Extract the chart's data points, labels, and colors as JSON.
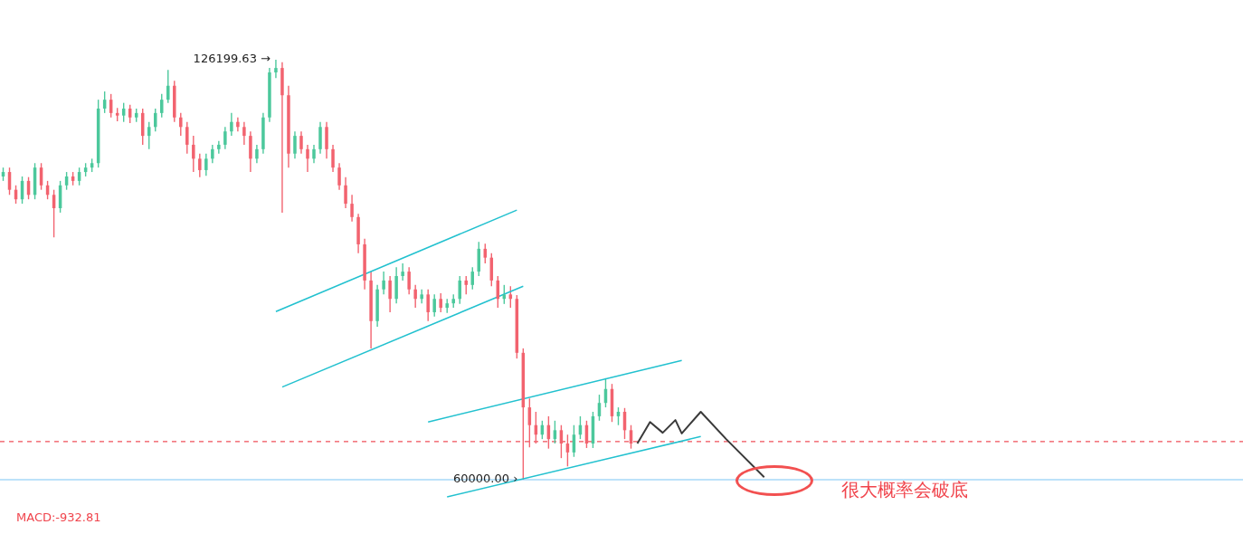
{
  "chart_data": {
    "type": "candlestick",
    "legend": false,
    "categories": [
      null,
      null,
      null,
      null,
      null,
      null,
      null,
      null,
      null,
      null,
      null,
      null,
      null,
      null,
      null,
      null,
      null,
      null,
      null,
      null,
      null,
      null,
      null,
      null,
      null,
      null,
      null,
      null,
      null,
      null,
      null,
      null,
      null,
      null,
      null,
      null,
      null,
      null,
      null,
      null,
      null,
      null,
      null,
      null,
      null,
      null,
      null,
      null,
      null,
      null,
      null,
      null,
      null,
      null,
      null,
      null,
      null,
      null,
      null,
      null,
      null,
      null,
      null,
      null,
      null,
      null,
      null,
      null,
      null,
      null,
      null,
      null,
      null,
      null,
      null,
      null,
      null,
      null,
      null,
      null,
      null,
      null,
      null,
      null,
      null,
      null,
      null,
      null,
      null,
      null,
      null,
      null,
      null,
      null,
      null,
      null,
      null,
      null,
      null,
      null,
      null,
      null,
      null,
      null,
      null,
      null,
      null,
      null,
      null,
      null,
      null,
      null,
      null,
      null,
      null,
      null,
      null,
      null,
      null,
      null,
      null,
      null,
      null,
      null,
      null,
      null,
      null,
      null,
      null,
      null,
      null,
      null,
      null,
      null,
      null,
      null,
      null,
      null,
      null,
      null,
      null,
      null,
      null,
      null,
      null,
      null,
      null,
      null,
      null,
      null,
      null,
      null,
      null,
      null,
      null,
      null,
      null,
      null,
      null,
      null,
      null,
      null,
      null,
      null,
      null,
      null,
      null,
      null,
      null,
      null,
      null,
      null,
      null,
      null,
      null,
      null,
      null,
      null,
      null,
      null,
      null,
      null,
      null,
      null,
      null,
      null,
      null,
      null,
      null,
      null,
      null,
      null,
      null,
      null,
      null,
      null
    ],
    "ohlc": [
      [
        107800,
        109200,
        107100,
        108500
      ],
      [
        108500,
        109200,
        104900,
        105700
      ],
      [
        105700,
        106400,
        103500,
        104200
      ],
      [
        104200,
        107800,
        103500,
        107100
      ],
      [
        107100,
        107700,
        104200,
        104900
      ],
      [
        104900,
        109900,
        104200,
        109200
      ],
      [
        109200,
        109900,
        105700,
        106400
      ],
      [
        106400,
        107100,
        104200,
        104900
      ],
      [
        104900,
        105700,
        98200,
        102800
      ],
      [
        102800,
        107100,
        102100,
        106400
      ],
      [
        106400,
        108500,
        105700,
        107800
      ],
      [
        107800,
        108500,
        106400,
        107100
      ],
      [
        107100,
        109200,
        106400,
        108500
      ],
      [
        108500,
        109900,
        107800,
        109200
      ],
      [
        109200,
        110600,
        108500,
        109900
      ],
      [
        109900,
        119900,
        109200,
        118500
      ],
      [
        118500,
        121200,
        117800,
        119900
      ],
      [
        119900,
        120800,
        117100,
        117800
      ],
      [
        117800,
        118600,
        116500,
        117400
      ],
      [
        117400,
        119400,
        116400,
        118500
      ],
      [
        118500,
        119100,
        116200,
        117100
      ],
      [
        117100,
        118500,
        116400,
        117800
      ],
      [
        117800,
        118500,
        112800,
        114200
      ],
      [
        114200,
        116400,
        112100,
        115600
      ],
      [
        115600,
        118500,
        114900,
        117800
      ],
      [
        117800,
        120800,
        117100,
        119900
      ],
      [
        119900,
        124600,
        119400,
        122100
      ],
      [
        122100,
        122900,
        116400,
        117100
      ],
      [
        117100,
        117800,
        114200,
        115600
      ],
      [
        115600,
        116400,
        111400,
        112800
      ],
      [
        112800,
        114200,
        108500,
        110600
      ],
      [
        110600,
        111400,
        107700,
        108800
      ],
      [
        108800,
        111400,
        107900,
        110600
      ],
      [
        110600,
        112800,
        109900,
        112100
      ],
      [
        112100,
        113400,
        111400,
        112800
      ],
      [
        112800,
        115600,
        112100,
        114900
      ],
      [
        114900,
        117800,
        114200,
        116400
      ],
      [
        116400,
        117100,
        114900,
        115600
      ],
      [
        115600,
        116400,
        112800,
        114200
      ],
      [
        114200,
        114900,
        108500,
        110600
      ],
      [
        110600,
        112800,
        109900,
        112100
      ],
      [
        112100,
        117800,
        111400,
        117100
      ],
      [
        117100,
        124900,
        116400,
        124200
      ],
      [
        124200,
        126199.63,
        123300,
        124900
      ],
      [
        124900,
        125800,
        102100,
        120600
      ],
      [
        120600,
        122100,
        109200,
        111400
      ],
      [
        111400,
        114900,
        110600,
        114200
      ],
      [
        114200,
        114900,
        111400,
        112100
      ],
      [
        112100,
        112800,
        108500,
        110600
      ],
      [
        110600,
        112800,
        109900,
        112100
      ],
      [
        112100,
        116400,
        111400,
        115600
      ],
      [
        115600,
        116400,
        110600,
        112100
      ],
      [
        112100,
        112800,
        108500,
        109200
      ],
      [
        109200,
        109900,
        105700,
        106400
      ],
      [
        106400,
        107700,
        102800,
        103500
      ],
      [
        103500,
        104900,
        100700,
        101400
      ],
      [
        101400,
        101900,
        95700,
        97100
      ],
      [
        97100,
        98000,
        90000,
        91400
      ],
      [
        91400,
        92800,
        80700,
        85000
      ],
      [
        85000,
        90700,
        84100,
        90000
      ],
      [
        90000,
        92800,
        89200,
        91400
      ],
      [
        91400,
        92100,
        86400,
        88500
      ],
      [
        88500,
        93500,
        87800,
        92100
      ],
      [
        92100,
        94100,
        91400,
        92800
      ],
      [
        92800,
        93500,
        89200,
        90000
      ],
      [
        90000,
        90700,
        87100,
        88500
      ],
      [
        88500,
        90000,
        87800,
        89200
      ],
      [
        89200,
        90000,
        85000,
        86400
      ],
      [
        86400,
        89200,
        85700,
        88500
      ],
      [
        88500,
        89400,
        86400,
        87100
      ],
      [
        87100,
        88500,
        86300,
        87800
      ],
      [
        87800,
        89200,
        87100,
        88500
      ],
      [
        88500,
        92100,
        87700,
        91400
      ],
      [
        91400,
        92100,
        89200,
        90700
      ],
      [
        90700,
        93500,
        90000,
        92800
      ],
      [
        92800,
        97500,
        92100,
        96400
      ],
      [
        96400,
        97200,
        94100,
        95000
      ],
      [
        95000,
        95700,
        90500,
        91400
      ],
      [
        91400,
        92100,
        87100,
        88500
      ],
      [
        88500,
        90700,
        87700,
        89200
      ],
      [
        89200,
        90500,
        87100,
        88500
      ],
      [
        88500,
        89100,
        79100,
        80000
      ],
      [
        80000,
        80700,
        60000,
        71400
      ],
      [
        71400,
        72800,
        65100,
        68600
      ],
      [
        68600,
        70700,
        65700,
        67100
      ],
      [
        67100,
        69300,
        66400,
        68600
      ],
      [
        68600,
        70000,
        64900,
        66400
      ],
      [
        66400,
        69300,
        65700,
        67800
      ],
      [
        67800,
        68600,
        63400,
        65700
      ],
      [
        65700,
        67100,
        62100,
        64300
      ],
      [
        64300,
        68600,
        63600,
        67100
      ],
      [
        67100,
        70000,
        66400,
        68600
      ],
      [
        68600,
        69300,
        65000,
        65700
      ],
      [
        65700,
        70700,
        65000,
        70000
      ],
      [
        70000,
        73400,
        69300,
        72100
      ],
      [
        72100,
        76000,
        71400,
        74300
      ],
      [
        74300,
        75100,
        69100,
        70000
      ],
      [
        70000,
        71400,
        68600,
        70700
      ],
      [
        70700,
        71300,
        66400,
        67800
      ],
      [
        67800,
        68600,
        64900,
        65700
      ],
      null,
      null,
      null,
      null,
      null,
      null,
      null,
      null,
      null,
      null,
      null,
      null,
      null,
      null,
      null,
      null,
      null,
      null,
      null,
      null,
      null,
      null,
      null,
      null,
      null,
      null,
      null,
      null,
      null,
      null,
      null,
      null,
      null,
      null,
      null,
      null,
      null,
      null,
      null,
      null,
      null,
      null,
      null,
      null,
      null,
      null,
      null,
      null,
      null,
      null,
      null,
      null,
      null,
      null,
      null,
      null,
      null,
      null,
      null,
      null,
      null,
      null,
      null,
      null,
      null,
      null,
      null,
      null,
      null,
      null,
      null,
      null,
      null,
      null,
      null,
      null,
      null,
      null,
      null,
      null,
      null,
      null,
      null,
      null,
      null,
      null,
      null,
      null,
      null,
      null,
      null,
      null,
      null,
      null,
      null,
      null
    ],
    "colors": [
      "#4cc89c",
      "#f2636f",
      "#f2636f",
      "#4cc89c",
      "#f2636f",
      "#4cc89c",
      "#f2636f",
      "#f2636f",
      "#f2636f",
      "#4cc89c",
      "#4cc89c",
      "#f2636f",
      "#4cc89c",
      "#4cc89c",
      "#4cc89c",
      "#4cc89c",
      "#4cc89c",
      "#f2636f",
      "#f2636f",
      "#4cc89c",
      "#f2636f",
      "#4cc89c",
      "#f2636f",
      "#4cc89c",
      "#4cc89c",
      "#4cc89c",
      "#4cc89c",
      "#f2636f",
      "#f2636f",
      "#f2636f",
      "#f2636f",
      "#f2636f",
      "#4cc89c",
      "#4cc89c",
      "#4cc89c",
      "#4cc89c",
      "#4cc89c",
      "#f2636f",
      "#f2636f",
      "#f2636f",
      "#4cc89c",
      "#4cc89c",
      "#4cc89c",
      "#4cc89c",
      "#f2636f",
      "#f2636f",
      "#4cc89c",
      "#f2636f",
      "#f2636f",
      "#4cc89c",
      "#4cc89c",
      "#f2636f",
      "#f2636f",
      "#f2636f",
      "#f2636f",
      "#f2636f",
      "#f2636f",
      "#f2636f",
      "#f2636f",
      "#4cc89c",
      "#4cc89c",
      "#f2636f",
      "#4cc89c",
      "#4cc89c",
      "#f2636f",
      "#f2636f",
      "#4cc89c",
      "#f2636f",
      "#4cc89c",
      "#f2636f",
      "#4cc89c",
      "#4cc89c",
      "#4cc89c",
      "#f2636f",
      "#4cc89c",
      "#4cc89c",
      "#f2636f",
      "#f2636f",
      "#f2636f",
      "#4cc89c",
      "#f2636f",
      "#f2636f",
      "#f2636f",
      "#f2636f",
      "#f2636f",
      "#4cc89c",
      "#f2636f",
      "#4cc89c",
      "#f2636f",
      "#f2636f",
      "#4cc89c",
      "#4cc89c",
      "#f2636f",
      "#4cc89c",
      "#4cc89c",
      "#4cc89c",
      "#f2636f",
      "#4cc89c",
      "#f2636f",
      "#f2636f",
      null,
      null,
      null,
      null,
      null,
      null,
      null,
      null,
      null,
      null,
      null,
      null,
      null,
      null,
      null,
      null,
      null,
      null,
      null,
      null,
      null,
      null,
      null,
      null,
      null,
      null,
      null,
      null,
      null,
      null,
      null,
      null,
      null,
      null,
      null,
      null,
      null,
      null,
      null,
      null,
      null,
      null,
      null,
      null,
      null,
      null,
      null,
      null,
      null,
      null,
      null,
      null,
      null,
      null,
      null,
      null,
      null,
      null,
      null,
      null,
      null,
      null,
      null,
      null,
      null,
      null,
      null,
      null,
      null,
      null,
      null,
      null,
      null,
      null,
      null,
      null,
      null,
      null,
      null,
      null,
      null,
      null,
      null,
      null,
      null,
      null,
      null,
      null,
      null,
      null,
      null,
      null,
      null,
      null,
      null,
      null
    ],
    "series": [
      {
        "type": "line",
        "color": "#22c1cf",
        "values": [
          null,
          null,
          null,
          null,
          null,
          null,
          null,
          null,
          null,
          null,
          null,
          null,
          null,
          null,
          null,
          null,
          null,
          null,
          null,
          null,
          null,
          null,
          null,
          null,
          null,
          null,
          null,
          null,
          null,
          null,
          null,
          null,
          null,
          null,
          null,
          null,
          null,
          null,
          null,
          null,
          null,
          null,
          null,
          86500,
          null,
          null,
          null,
          null,
          null,
          null,
          null,
          null,
          null,
          null,
          null,
          null,
          null,
          null,
          null,
          null,
          null,
          null,
          null,
          null,
          null,
          null,
          null,
          null,
          null,
          null,
          null,
          null,
          null,
          null,
          null,
          null,
          null,
          null,
          null,
          null,
          null,
          102500,
          null,
          null,
          null,
          null,
          null,
          null,
          null,
          null,
          null,
          null,
          null,
          null,
          null,
          null,
          null,
          null,
          null,
          null,
          null,
          null,
          null,
          null,
          null,
          null,
          null,
          null,
          null,
          null,
          null,
          null,
          null,
          null,
          null,
          null,
          null,
          null,
          null,
          null,
          null,
          null,
          null,
          null,
          null,
          null,
          null,
          null,
          null,
          null,
          null,
          null,
          null,
          null,
          null,
          null,
          null,
          null,
          null,
          null,
          null,
          null,
          null,
          null,
          null,
          null,
          null,
          null,
          null,
          null,
          null,
          null,
          null,
          null,
          null,
          null,
          null,
          null,
          null,
          null,
          null,
          null,
          null,
          null,
          null,
          null,
          null,
          null,
          null,
          null,
          null,
          null,
          null,
          null,
          null,
          null,
          null,
          null,
          null,
          null,
          null,
          null,
          null,
          null,
          null,
          null,
          null,
          null,
          null,
          null,
          null,
          null,
          null,
          null,
          null,
          null
        ]
      },
      {
        "type": "line",
        "color": "#22c1cf",
        "values": [
          null,
          null,
          null,
          null,
          null,
          null,
          null,
          null,
          null,
          null,
          null,
          null,
          null,
          null,
          null,
          null,
          null,
          null,
          null,
          null,
          null,
          null,
          null,
          null,
          null,
          null,
          null,
          null,
          null,
          null,
          null,
          null,
          null,
          null,
          null,
          null,
          null,
          null,
          null,
          null,
          null,
          null,
          null,
          null,
          74600,
          null,
          null,
          null,
          null,
          null,
          null,
          null,
          null,
          null,
          null,
          null,
          null,
          null,
          null,
          null,
          null,
          null,
          null,
          null,
          null,
          null,
          null,
          null,
          null,
          null,
          null,
          null,
          null,
          null,
          null,
          null,
          null,
          null,
          null,
          null,
          null,
          null,
          90500,
          null,
          null,
          null,
          null,
          null,
          null,
          null,
          null,
          null,
          null,
          null,
          null,
          null,
          null,
          null,
          null,
          null,
          null,
          null,
          null,
          null,
          null,
          null,
          null,
          null,
          null,
          null,
          null,
          null,
          null,
          null,
          null,
          null,
          null,
          null,
          null,
          null,
          null,
          null,
          null,
          null,
          null,
          null,
          null,
          null,
          null,
          null,
          null,
          null,
          null,
          null,
          null,
          null,
          null,
          null,
          null,
          null,
          null,
          null,
          null,
          null,
          null,
          null,
          null,
          null,
          null,
          null,
          null,
          null,
          null,
          null,
          null,
          null,
          null,
          null,
          null,
          null,
          null,
          null,
          null,
          null,
          null,
          null,
          null,
          null,
          null,
          null,
          null,
          null,
          null,
          null,
          null,
          null,
          null,
          null,
          null,
          null,
          null,
          null,
          null,
          null,
          null,
          null,
          null,
          null,
          null,
          null,
          null,
          null,
          null,
          null,
          null,
          null
        ]
      },
      {
        "type": "line",
        "color": "#22c1cf",
        "values": [
          null,
          null,
          null,
          null,
          null,
          null,
          null,
          null,
          null,
          null,
          null,
          null,
          null,
          null,
          null,
          null,
          null,
          null,
          null,
          null,
          null,
          null,
          null,
          null,
          null,
          null,
          null,
          null,
          null,
          null,
          null,
          null,
          null,
          null,
          null,
          null,
          null,
          null,
          null,
          null,
          null,
          null,
          null,
          null,
          null,
          null,
          null,
          null,
          null,
          null,
          null,
          null,
          null,
          null,
          null,
          null,
          null,
          null,
          null,
          null,
          null,
          null,
          null,
          null,
          null,
          null,
          null,
          69100,
          null,
          null,
          null,
          null,
          null,
          null,
          null,
          null,
          null,
          null,
          null,
          null,
          null,
          null,
          null,
          null,
          null,
          null,
          null,
          null,
          null,
          null,
          null,
          null,
          null,
          null,
          null,
          null,
          null,
          null,
          null,
          null,
          null,
          null,
          null,
          null,
          null,
          null,
          null,
          78800,
          null,
          null,
          null,
          null,
          null,
          null,
          null,
          null,
          null,
          null,
          null,
          null,
          null,
          null,
          null,
          null,
          null,
          null,
          null,
          null,
          null,
          null,
          null,
          null,
          null,
          null,
          null,
          null,
          null,
          null,
          null,
          null,
          null,
          null,
          null,
          null,
          null,
          null,
          null,
          null,
          null,
          null,
          null,
          null,
          null,
          null,
          null,
          null,
          null,
          null,
          null,
          null,
          null,
          null,
          null,
          null,
          null,
          null,
          null,
          null,
          null,
          null,
          null,
          null,
          null,
          null,
          null,
          null,
          null,
          null,
          null,
          null,
          null,
          null,
          null,
          null,
          null,
          null,
          null,
          null,
          null,
          null,
          null,
          null,
          null,
          null,
          null,
          null
        ]
      },
      {
        "type": "line",
        "color": "#22c1cf",
        "values": [
          null,
          null,
          null,
          null,
          null,
          null,
          null,
          null,
          null,
          null,
          null,
          null,
          null,
          null,
          null,
          null,
          null,
          null,
          null,
          null,
          null,
          null,
          null,
          null,
          null,
          null,
          null,
          null,
          null,
          null,
          null,
          null,
          null,
          null,
          null,
          null,
          null,
          null,
          null,
          null,
          null,
          null,
          null,
          null,
          null,
          null,
          null,
          null,
          null,
          null,
          null,
          null,
          null,
          null,
          null,
          null,
          null,
          null,
          null,
          null,
          null,
          null,
          null,
          null,
          null,
          null,
          null,
          null,
          null,
          null,
          57300,
          null,
          null,
          null,
          null,
          null,
          null,
          null,
          null,
          null,
          null,
          null,
          null,
          null,
          null,
          null,
          null,
          null,
          null,
          null,
          null,
          null,
          null,
          null,
          null,
          null,
          null,
          null,
          null,
          null,
          null,
          null,
          null,
          null,
          null,
          null,
          null,
          null,
          null,
          null,
          66800,
          null,
          null,
          null,
          null,
          null,
          null,
          null,
          null,
          null,
          null,
          null,
          null,
          null,
          null,
          null,
          null,
          null,
          null,
          null,
          null,
          null,
          null,
          null,
          null,
          null,
          null,
          null,
          null,
          null,
          null,
          null,
          null,
          null,
          null,
          null,
          null,
          null,
          null,
          null,
          null,
          null,
          null,
          null,
          null,
          null,
          null,
          null,
          null,
          null,
          null,
          null,
          null,
          null,
          null,
          null,
          null,
          null,
          null,
          null,
          null,
          null,
          null,
          null,
          null,
          null,
          null,
          null,
          null,
          null,
          null,
          null,
          null,
          null,
          null,
          null,
          null,
          null,
          null,
          null,
          null,
          null,
          null,
          null,
          null,
          null
        ]
      },
      {
        "type": "line",
        "color": "#3a3a3a",
        "values": [
          null,
          null,
          null,
          null,
          null,
          null,
          null,
          null,
          null,
          null,
          null,
          null,
          null,
          null,
          null,
          null,
          null,
          null,
          null,
          null,
          null,
          null,
          null,
          null,
          null,
          null,
          null,
          null,
          null,
          null,
          null,
          null,
          null,
          null,
          null,
          null,
          null,
          null,
          null,
          null,
          null,
          null,
          null,
          null,
          null,
          null,
          null,
          null,
          null,
          null,
          null,
          null,
          null,
          null,
          null,
          null,
          null,
          null,
          null,
          null,
          null,
          null,
          null,
          null,
          null,
          null,
          null,
          null,
          null,
          null,
          null,
          null,
          null,
          null,
          null,
          null,
          null,
          null,
          null,
          null,
          null,
          null,
          null,
          null,
          null,
          null,
          null,
          null,
          null,
          null,
          null,
          null,
          null,
          null,
          null,
          null,
          null,
          null,
          null,
          null,
          65700,
          null,
          69100,
          null,
          67400,
          null,
          69400,
          67300,
          null,
          null,
          70700,
          null,
          null,
          null,
          66400,
          null,
          null,
          null,
          null,
          null,
          60400,
          null,
          null,
          null,
          null,
          null,
          null,
          null,
          null,
          null,
          null,
          null,
          null,
          null,
          null,
          null,
          null,
          null,
          null,
          null,
          null,
          null,
          null,
          null,
          null,
          null,
          null,
          null,
          null,
          null,
          null,
          null,
          null,
          null,
          null,
          null,
          null,
          null,
          null,
          null,
          null,
          null,
          null,
          null,
          null,
          null,
          null,
          null,
          null,
          null,
          null,
          null,
          null,
          null,
          null,
          null,
          null,
          null,
          null,
          null,
          null,
          null,
          null,
          null,
          null,
          null,
          null,
          null,
          null,
          null,
          null,
          null,
          null,
          null,
          null,
          null
        ]
      }
    ],
    "ref_lines": [
      {
        "axis": "y",
        "value": 60000,
        "color": "#7cc6f5",
        "line_style": "solid"
      },
      {
        "axis": "y",
        "value": 66000,
        "color": "#f0505a",
        "line_style": "dashed"
      }
    ],
    "annotations": [
      "126199.63 →",
      "60000.00 ›",
      "很大概率会破底",
      "MACD:-932.81"
    ]
  }
}
